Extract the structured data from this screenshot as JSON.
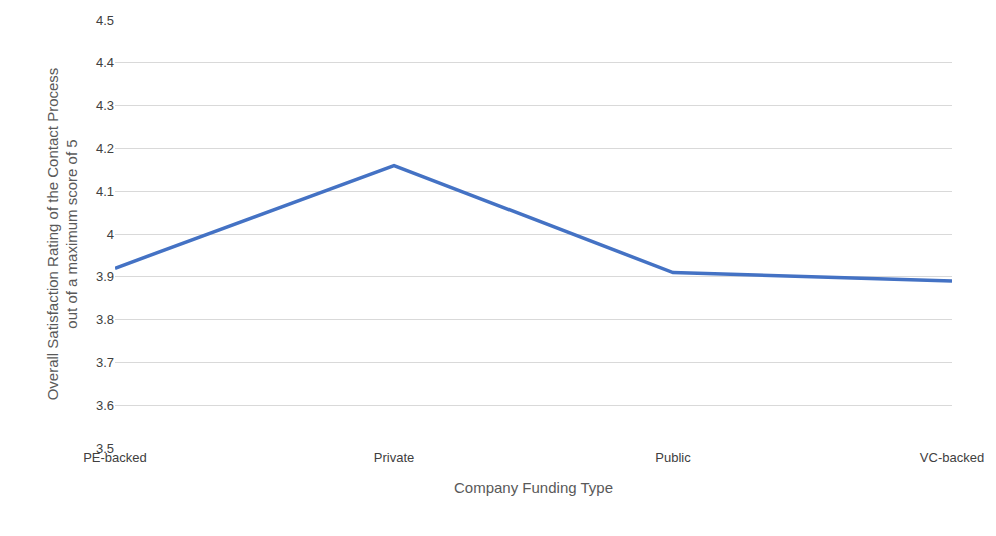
{
  "chart_data": {
    "type": "line",
    "x_label": "Company Funding Type",
    "y_label": [
      "Overall Satisfaction Rating of the Contact Process",
      "out of a maximum score of 5"
    ],
    "categories": [
      "PE-backed",
      "Private",
      "Public",
      "VC-backed"
    ],
    "values": [
      3.92,
      4.16,
      3.91,
      3.89
    ],
    "color": "#4472c4",
    "ylim": [
      3.5,
      4.5
    ],
    "yticks": [
      3.5,
      3.6,
      3.7,
      3.8,
      3.9,
      4,
      4.1,
      4.2,
      4.3,
      4.4,
      4.5
    ],
    "grid": true
  }
}
